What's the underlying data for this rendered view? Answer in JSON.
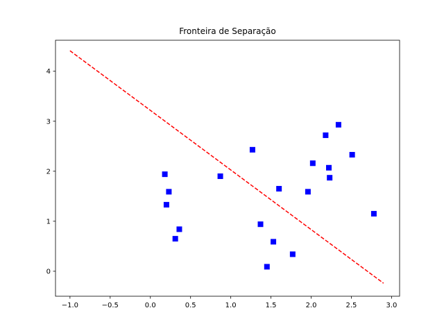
{
  "chart_data": {
    "type": "scatter",
    "title": "Fronteira de Separação",
    "xlabel": "",
    "ylabel": "",
    "xlim": [
      -1.18,
      3.1
    ],
    "ylim": [
      -0.5,
      4.62
    ],
    "xticks": [
      -1.0,
      -0.5,
      0.0,
      0.5,
      1.0,
      1.5,
      2.0,
      2.5,
      3.0
    ],
    "xtick_labels": [
      "−1.0",
      "−0.5",
      "0.0",
      "0.5",
      "1.0",
      "1.5",
      "2.0",
      "2.5",
      "3.0"
    ],
    "yticks": [
      0,
      1,
      2,
      3,
      4
    ],
    "ytick_labels": [
      "0",
      "1",
      "2",
      "3",
      "4"
    ],
    "grid": false,
    "points": {
      "color": "#0000ff",
      "marker": "square",
      "x": [
        0.18,
        0.23,
        0.2,
        0.36,
        0.31,
        0.87,
        1.27,
        1.37,
        1.6,
        1.53,
        1.45,
        1.77,
        1.96,
        2.02,
        2.18,
        2.22,
        2.23,
        2.34,
        2.51,
        2.78
      ],
      "y": [
        1.94,
        1.59,
        1.33,
        0.84,
        0.65,
        1.9,
        2.43,
        0.94,
        1.65,
        0.59,
        0.09,
        0.34,
        1.59,
        2.16,
        2.72,
        2.07,
        1.87,
        2.93,
        2.33,
        1.15
      ]
    },
    "boundary": {
      "color": "#ff0000",
      "style": "dashed",
      "x": [
        -1.0,
        2.9
      ],
      "y": [
        4.41,
        -0.24
      ]
    }
  }
}
